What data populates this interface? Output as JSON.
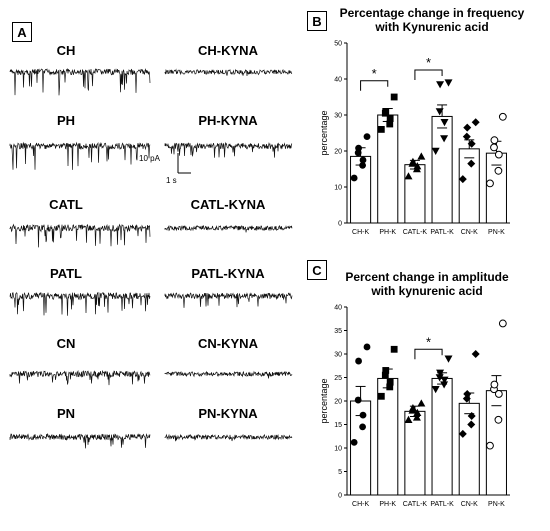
{
  "panel_a": {
    "tag": "A",
    "traces": [
      {
        "label": "CH",
        "style": "spiky"
      },
      {
        "label": "CH-KYNA",
        "style": "quiet"
      },
      {
        "label": "PH",
        "style": "spiky"
      },
      {
        "label": "PH-KYNA",
        "style": "medium"
      },
      {
        "label": "CATL",
        "style": "dense"
      },
      {
        "label": "CATL-KYNA",
        "style": "quiet"
      },
      {
        "label": "PATL",
        "style": "dense"
      },
      {
        "label": "PATL-KYNA",
        "style": "medium"
      },
      {
        "label": "CN",
        "style": "medium"
      },
      {
        "label": "CN-KYNA",
        "style": "quiet"
      },
      {
        "label": "PN",
        "style": "medium"
      },
      {
        "label": "PN-KYNA",
        "style": "quiet"
      }
    ],
    "scale_bar": {
      "y_label": "10 pA",
      "x_label": "1 s"
    }
  },
  "chart_data": [
    {
      "tag": "B",
      "type": "bar",
      "title": "Percentage change in frequency with Kynurenic acid",
      "ylabel": "percentage",
      "ylim": [
        0,
        50
      ],
      "yticks": [
        0,
        10,
        20,
        30,
        40,
        50
      ],
      "categories": [
        "CH-K",
        "PH-K",
        "CATL-K",
        "PATL-K",
        "CN-K",
        "PN-K"
      ],
      "values": [
        18.5,
        30.0,
        16.2,
        29.6,
        20.6,
        19.4
      ],
      "errors": [
        2.4,
        1.8,
        1.2,
        3.2,
        2.5,
        3.3
      ],
      "markers": [
        "circle",
        "square",
        "triangle-up",
        "triangle-down",
        "diamond",
        "circle-open"
      ],
      "points": [
        [
          12.5,
          16.0,
          17.5,
          19.5,
          20.8,
          24.0
        ],
        [
          26.0,
          27.5,
          29.0,
          30.5,
          31.0,
          35.0
        ],
        [
          13.0,
          15.0,
          15.8,
          16.5,
          17.0,
          18.5
        ],
        [
          20.0,
          23.5,
          28.0,
          31.0,
          38.5,
          39.0
        ],
        [
          12.2,
          16.5,
          22.0,
          24.0,
          26.5,
          28.0
        ],
        [
          11.0,
          14.5,
          19.0,
          21.0,
          23.0,
          29.5
        ]
      ],
      "significance": [
        {
          "from": 0,
          "to": 1,
          "y": 39.5,
          "label": "*"
        },
        {
          "from": 2,
          "to": 3,
          "y": 42.5,
          "label": "*"
        }
      ]
    },
    {
      "tag": "C",
      "type": "bar",
      "title": "Percent change in amplitude with kynurenic acid",
      "ylabel": "percentage",
      "ylim": [
        0,
        40
      ],
      "yticks": [
        0,
        5,
        10,
        15,
        20,
        25,
        30,
        35,
        40
      ],
      "categories": [
        "CH-K",
        "PH-K",
        "CATL-K",
        "PATL-K",
        "CN-K",
        "PN-K"
      ],
      "values": [
        20.0,
        24.8,
        17.8,
        24.8,
        19.5,
        22.2
      ],
      "errors": [
        3.1,
        2.0,
        1.1,
        1.2,
        2.2,
        3.2
      ],
      "markers": [
        "circle",
        "square",
        "triangle-up",
        "triangle-down",
        "diamond",
        "circle-open"
      ],
      "points": [
        [
          11.2,
          14.5,
          17.0,
          20.2,
          28.5,
          31.5
        ],
        [
          21.0,
          23.0,
          24.0,
          25.5,
          26.5,
          31.0
        ],
        [
          16.0,
          16.5,
          17.5,
          18.0,
          18.5,
          19.5
        ],
        [
          22.5,
          23.5,
          24.5,
          25.0,
          26.0,
          29.0
        ],
        [
          13.0,
          15.0,
          16.8,
          20.5,
          21.5,
          30.0
        ],
        [
          10.5,
          16.0,
          21.5,
          22.5,
          23.5,
          36.5
        ]
      ],
      "significance": [
        {
          "from": 2,
          "to": 3,
          "y": 31.0,
          "label": "*"
        }
      ]
    }
  ]
}
